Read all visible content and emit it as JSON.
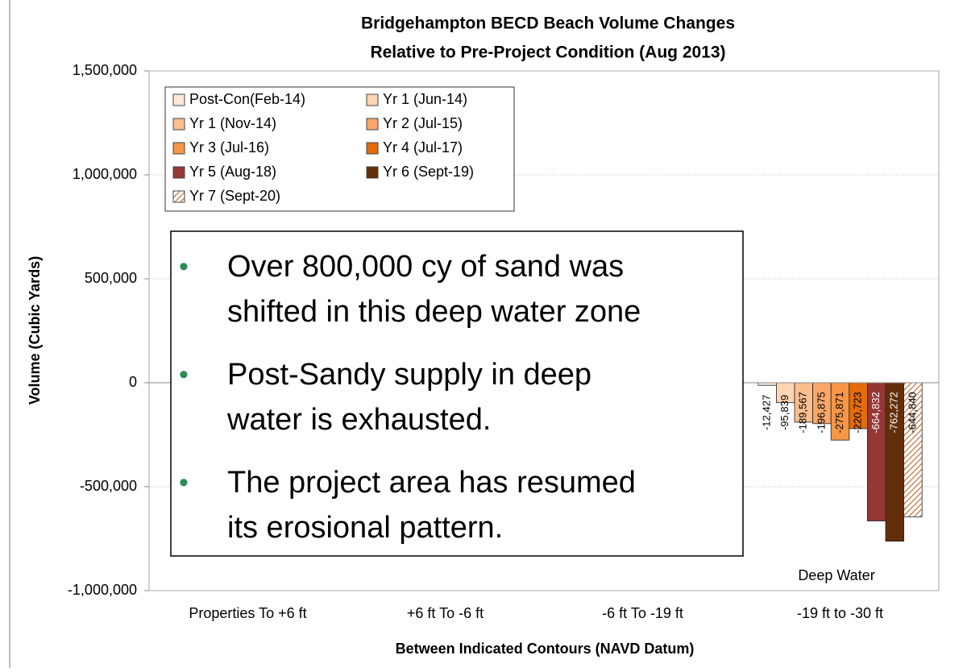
{
  "chart_data": {
    "type": "bar",
    "title": [
      "Bridgehampton BECD Beach Volume Changes",
      "Relative to Pre-Project Condition (Aug 2013)"
    ],
    "x_label": "Between Indicated Contours (NAVD Datum)",
    "y_label": "Volume (Cubic Yards)",
    "categories": [
      "Properties To +6 ft",
      "+6 ft To -6 ft",
      "-6 ft To -19 ft",
      "-19 ft to -30 ft"
    ],
    "ylim": [
      -1000000,
      1500000
    ],
    "yticks": [
      {
        "value": -1000000,
        "label": "-1,000,000"
      },
      {
        "value": -500000,
        "label": "-500,000"
      },
      0,
      {
        "value": 500000,
        "label": "500,000"
      },
      {
        "value": 1000000,
        "label": "1,000,000"
      },
      {
        "value": 1500000,
        "label": "1,500,000"
      }
    ],
    "grid": true,
    "legend": "upper left",
    "series": [
      {
        "name": "Post-Con(Feb-14)",
        "color": "#fde9d9",
        "values": [
          null,
          null,
          null,
          -12427
        ],
        "value_labels": [
          null,
          null,
          null,
          "-12,427"
        ]
      },
      {
        "name": "Yr 1 (Jun-14)",
        "color": "#fcd5b4",
        "values": [
          null,
          null,
          null,
          -95839
        ],
        "value_labels": [
          null,
          null,
          null,
          "-95,839"
        ]
      },
      {
        "name": "Yr 1 (Nov-14)",
        "color": "#fabf8f",
        "values": [
          null,
          null,
          null,
          -189567
        ],
        "value_labels": [
          null,
          null,
          null,
          "-189,567"
        ]
      },
      {
        "name": "Yr 2 (Jul-15)",
        "color": "#f9a86a",
        "values": [
          null,
          null,
          null,
          -196875
        ],
        "value_labels": [
          null,
          null,
          null,
          "-196,875"
        ]
      },
      {
        "name": "Yr 3 (Jul-16)",
        "color": "#f79646",
        "values": [
          null,
          null,
          null,
          -275871
        ],
        "value_labels": [
          null,
          null,
          null,
          "-275,871"
        ]
      },
      {
        "name": "Yr 4 (Jul-17)",
        "color": "#e46c0a",
        "values": [
          null,
          null,
          null,
          -220723
        ],
        "value_labels": [
          null,
          null,
          null,
          "-220,723"
        ]
      },
      {
        "name": "Yr 5 (Aug-18)",
        "color": "#953735",
        "values": [
          null,
          null,
          null,
          -664832
        ],
        "value_labels": [
          null,
          null,
          null,
          "-664,832"
        ]
      },
      {
        "name": "Yr 6 (Sept-19)",
        "color": "#632f0a",
        "values": [
          null,
          null,
          null,
          -762272
        ],
        "value_labels": [
          null,
          null,
          null,
          "-762,272"
        ]
      },
      {
        "name": "Yr 7 (Sept-20)",
        "color": "#e39a6a",
        "pattern": "hatch",
        "values": [
          null,
          null,
          null,
          -644840
        ],
        "value_labels": [
          null,
          null,
          null,
          "-644,840"
        ]
      }
    ],
    "annotations": [
      "Deep Water"
    ],
    "callout": [
      [
        "Over 800,000 cy of sand was",
        "shifted in this deep water zone"
      ],
      [
        "Post-Sandy supply in deep",
        "water is exhausted."
      ],
      [
        "The project area has resumed",
        "its erosional pattern."
      ]
    ]
  }
}
